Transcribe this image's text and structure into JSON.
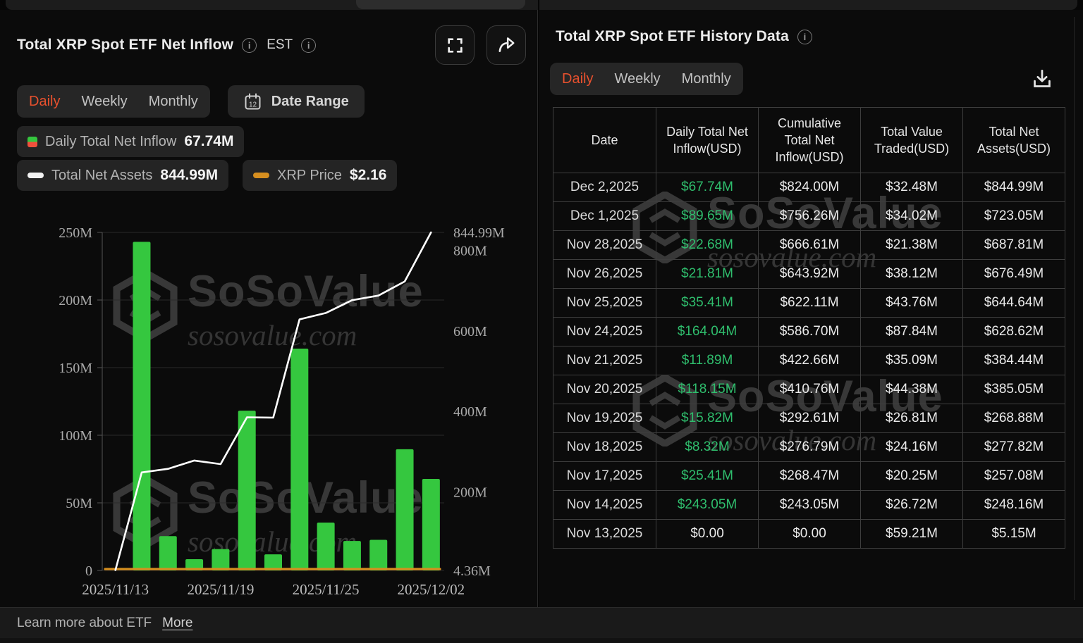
{
  "colors": {
    "accent_red": "#E8512E",
    "bar_green": "#35C73F",
    "legend_negative_red": "#F0503C",
    "table_green": "#2FBE6D",
    "assets_line_white": "#FFFFFF",
    "price_line_orange": "#D78F1F",
    "panel_bg": "#0B0B0B"
  },
  "left_panel": {
    "title": "Total XRP Spot ETF Net Inflow",
    "est_label": "EST",
    "tabs": [
      "Daily",
      "Weekly",
      "Monthly"
    ],
    "active_tab": "Daily",
    "date_range_label": "Date Range",
    "calendar_day": "12",
    "legend": {
      "inflow_label": "Daily Total Net Inflow",
      "inflow_value": "67.74M",
      "assets_label": "Total Net Assets",
      "assets_value": "844.99M",
      "price_label": "XRP Price",
      "price_value": "$2.16"
    }
  },
  "chart_data": {
    "type": "bar",
    "title": "Total XRP Spot ETF Net Inflow",
    "grid": true,
    "legend_position": "top",
    "x": [
      "2025/11/13",
      "2025/11/14",
      "2025/11/17",
      "2025/11/18",
      "2025/11/19",
      "2025/11/20",
      "2025/11/21",
      "2025/11/24",
      "2025/11/25",
      "2025/11/26",
      "2025/11/28",
      "2025/12/01",
      "2025/12/02"
    ],
    "x_ticks": [
      {
        "label": "2025/11/13",
        "index": 0
      },
      {
        "label": "2025/11/19",
        "index": 4
      },
      {
        "label": "2025/11/25",
        "index": 8
      },
      {
        "label": "2025/12/02",
        "index": 12
      }
    ],
    "left_axis": {
      "min": 0,
      "max": 250,
      "unit": "M USD",
      "ticks": [
        {
          "label": "0",
          "value": 0
        },
        {
          "label": "50M",
          "value": 50
        },
        {
          "label": "100M",
          "value": 100
        },
        {
          "label": "150M",
          "value": 150
        },
        {
          "label": "200M",
          "value": 200
        },
        {
          "label": "250M",
          "value": 250
        }
      ]
    },
    "right_axis": {
      "min": 4.36,
      "max": 844.99,
      "unit": "M USD",
      "ticks": [
        {
          "label": "4.36M",
          "value": 4.36
        },
        {
          "label": "200M",
          "value": 200
        },
        {
          "label": "400M",
          "value": 400
        },
        {
          "label": "600M",
          "value": 600
        },
        {
          "label": "800M",
          "value": 800
        },
        {
          "label": "844.99M",
          "value": 844.99
        }
      ]
    },
    "series": [
      {
        "name": "Daily Total Net Inflow",
        "type": "bar",
        "axis": "left",
        "color": "#35C73F",
        "values": [
          0,
          243.05,
          25.41,
          8.32,
          15.82,
          118.15,
          11.89,
          164.04,
          35.41,
          21.81,
          22.68,
          89.65,
          67.74
        ]
      },
      {
        "name": "Total Net Assets",
        "type": "line",
        "axis": "right",
        "color": "#FFFFFF",
        "values": [
          5.15,
          248.16,
          257.08,
          277.82,
          268.88,
          385.05,
          384.44,
          628.62,
          644.64,
          676.49,
          687.81,
          723.05,
          844.99
        ]
      },
      {
        "name": "XRP Price",
        "type": "line",
        "axis": "price",
        "color": "#D78F1F",
        "current": 2.16
      }
    ]
  },
  "right_panel": {
    "title": "Total XRP Spot ETF History Data",
    "tabs": [
      "Daily",
      "Weekly",
      "Monthly"
    ],
    "active_tab": "Daily",
    "table": {
      "headers": [
        "Date",
        "Daily Total Net Inflow(USD)",
        "Cumulative Total Net Inflow(USD)",
        "Total Value Traded(USD)",
        "Total Net Assets(USD)"
      ],
      "rows": [
        [
          "Dec 2,2025",
          "$67.74M",
          "$824.00M",
          "$32.48M",
          "$844.99M"
        ],
        [
          "Dec 1,2025",
          "$89.65M",
          "$756.26M",
          "$34.02M",
          "$723.05M"
        ],
        [
          "Nov 28,2025",
          "$22.68M",
          "$666.61M",
          "$21.38M",
          "$687.81M"
        ],
        [
          "Nov 26,2025",
          "$21.81M",
          "$643.92M",
          "$38.12M",
          "$676.49M"
        ],
        [
          "Nov 25,2025",
          "$35.41M",
          "$622.11M",
          "$43.76M",
          "$644.64M"
        ],
        [
          "Nov 24,2025",
          "$164.04M",
          "$586.70M",
          "$87.84M",
          "$628.62M"
        ],
        [
          "Nov 21,2025",
          "$11.89M",
          "$422.66M",
          "$35.09M",
          "$384.44M"
        ],
        [
          "Nov 20,2025",
          "$118.15M",
          "$410.76M",
          "$44.38M",
          "$385.05M"
        ],
        [
          "Nov 19,2025",
          "$15.82M",
          "$292.61M",
          "$26.81M",
          "$268.88M"
        ],
        [
          "Nov 18,2025",
          "$8.32M",
          "$276.79M",
          "$24.16M",
          "$277.82M"
        ],
        [
          "Nov 17,2025",
          "$25.41M",
          "$268.47M",
          "$20.25M",
          "$257.08M"
        ],
        [
          "Nov 14,2025",
          "$243.05M",
          "$243.05M",
          "$26.72M",
          "$248.16M"
        ],
        [
          "Nov 13,2025",
          "$0.00",
          "$0.00",
          "$59.21M",
          "$5.15M"
        ]
      ]
    }
  },
  "watermark": {
    "brand": "SoSoValue",
    "domain": "sosovalue.com"
  },
  "footer": {
    "text": "Learn more about ETF",
    "link": "More"
  }
}
